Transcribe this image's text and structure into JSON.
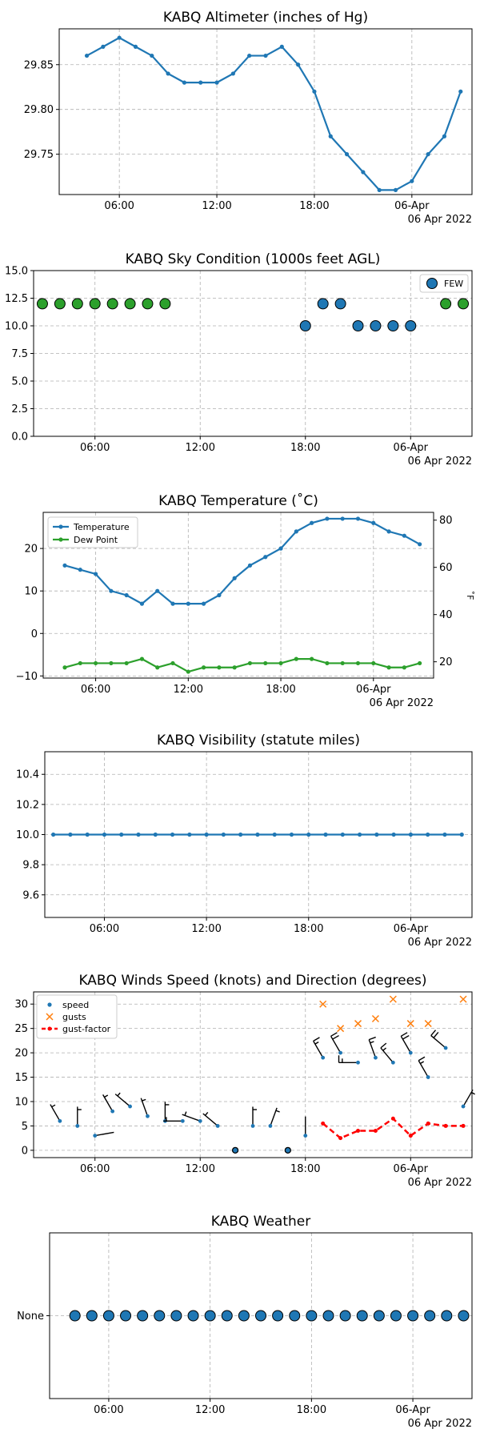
{
  "chart_data": [
    {
      "id": "altimeter",
      "type": "line",
      "title": "KABQ Altimeter (inches of Hg)",
      "xlabel": "",
      "ylabel": "",
      "x_ticks": [
        "06:00",
        "12:00",
        "18:00",
        "06-Apr"
      ],
      "x_sublabel": "06 Apr 2022",
      "x_range": [
        2.5,
        26
      ],
      "ylim": [
        29.705,
        29.89
      ],
      "y_ticks": [
        "29.75",
        "29.80",
        "29.85"
      ],
      "grid": true,
      "series": [
        {
          "color": "#1f77b4",
          "x": [
            4,
            5,
            6,
            7,
            8,
            9,
            10,
            11,
            12,
            13,
            14,
            15,
            16,
            17,
            18,
            19,
            20,
            21,
            22,
            23,
            24,
            25,
            26,
            27
          ],
          "values": [
            29.86,
            29.87,
            29.88,
            29.87,
            29.86,
            29.84,
            29.83,
            29.83,
            29.83,
            29.84,
            29.86,
            29.86,
            29.87,
            29.85,
            29.82,
            29.77,
            29.75,
            29.73,
            29.71,
            29.71,
            29.72,
            29.75,
            29.77,
            29.82
          ]
        }
      ]
    },
    {
      "id": "sky",
      "type": "scatter",
      "title": "KABQ Sky Condition (1000s feet AGL)",
      "xlabel": "",
      "ylabel": "",
      "x_ticks": [
        "06:00",
        "12:00",
        "18:00",
        "06-Apr"
      ],
      "x_sublabel": "06 Apr 2022",
      "ylim": [
        0,
        15
      ],
      "y_ticks": [
        "0.0",
        "2.5",
        "5.0",
        "7.5",
        "10.0",
        "12.5",
        "15.0"
      ],
      "grid": true,
      "legend": [
        "FEW"
      ],
      "legend_position": "top-right",
      "series": [
        {
          "color": "#2ca02c",
          "x": [
            3,
            4,
            5,
            6,
            7,
            8,
            9,
            10,
            26,
            27
          ],
          "values": [
            12,
            12,
            12,
            12,
            12,
            12,
            12,
            12,
            12,
            12
          ]
        },
        {
          "name": "FEW",
          "color": "#1f77b4",
          "x": [
            18,
            19,
            20,
            21,
            22,
            23,
            24
          ],
          "values": [
            10,
            12,
            12,
            10,
            10,
            10,
            10
          ]
        }
      ]
    },
    {
      "id": "temperature",
      "type": "line",
      "title": "KABQ Temperature (˚C)",
      "xlabel": "",
      "ylabel": "",
      "y2label": "˚F",
      "x_ticks": [
        "06:00",
        "12:00",
        "18:00",
        "06-Apr"
      ],
      "x_sublabel": "06 Apr 2022",
      "ylim": [
        -10.5,
        28.5
      ],
      "y_ticks": [
        "−10",
        "0",
        "10",
        "20"
      ],
      "y2_ticks": [
        "20",
        "40",
        "60",
        "80"
      ],
      "grid": true,
      "legend": [
        "Temperature",
        "Dew Point"
      ],
      "legend_position": "top-left",
      "series": [
        {
          "name": "Temperature",
          "color": "#1f77b4",
          "x": [
            4,
            5,
            6,
            7,
            8,
            9,
            10,
            11,
            12,
            13,
            14,
            15,
            16,
            17,
            18,
            19,
            20,
            21,
            22,
            23,
            24,
            25,
            26,
            27
          ],
          "values": [
            16,
            15,
            14,
            10,
            9,
            7,
            10,
            7,
            7,
            7,
            9,
            13,
            16,
            18,
            20,
            24,
            26,
            27,
            27,
            27,
            26,
            24,
            23,
            21
          ]
        },
        {
          "name": "Dew Point",
          "color": "#2ca02c",
          "x": [
            4,
            5,
            6,
            7,
            8,
            9,
            10,
            11,
            12,
            13,
            14,
            15,
            16,
            17,
            18,
            19,
            20,
            21,
            22,
            23,
            24,
            25,
            26,
            27
          ],
          "values": [
            -8,
            -7,
            -7,
            -7,
            -7,
            -6,
            -8,
            -7,
            -9,
            -8,
            -8,
            -8,
            -7,
            -7,
            -7,
            -6,
            -6,
            -7,
            -7,
            -7,
            -7,
            -8,
            -8,
            -7
          ]
        }
      ]
    },
    {
      "id": "visibility",
      "type": "line",
      "title": "KABQ Visibility (statute miles)",
      "xlabel": "",
      "ylabel": "",
      "x_ticks": [
        "06:00",
        "12:00",
        "18:00",
        "06-Apr"
      ],
      "x_sublabel": "06 Apr 2022",
      "ylim": [
        9.45,
        10.55
      ],
      "y_ticks": [
        "9.6",
        "9.8",
        "10.0",
        "10.2",
        "10.4"
      ],
      "grid": true,
      "series": [
        {
          "color": "#1f77b4",
          "x": [
            3,
            4,
            5,
            6,
            7,
            8,
            9,
            10,
            11,
            12,
            13,
            14,
            15,
            16,
            17,
            18,
            19,
            20,
            21,
            22,
            23,
            24,
            25,
            26,
            27
          ],
          "values": [
            10,
            10,
            10,
            10,
            10,
            10,
            10,
            10,
            10,
            10,
            10,
            10,
            10,
            10,
            10,
            10,
            10,
            10,
            10,
            10,
            10,
            10,
            10,
            10,
            10
          ]
        }
      ]
    },
    {
      "id": "winds",
      "type": "scatter",
      "title": "KABQ Winds Speed (knots) and Direction (degrees)",
      "xlabel": "",
      "ylabel": "",
      "x_ticks": [
        "06:00",
        "12:00",
        "18:00",
        "06-Apr"
      ],
      "x_sublabel": "06 Apr 2022",
      "ylim": [
        -1.5,
        32.5
      ],
      "y_ticks": [
        "0",
        "5",
        "10",
        "15",
        "20",
        "25",
        "30"
      ],
      "grid": true,
      "legend": [
        "speed",
        "gusts",
        "gust-factor"
      ],
      "legend_position": "top-left",
      "series": [
        {
          "name": "speed",
          "color": "#1f77b4",
          "x": [
            4,
            5,
            6,
            7,
            8,
            9,
            10,
            11,
            12,
            13,
            14,
            15,
            16,
            17,
            18,
            19,
            20,
            21,
            22,
            23,
            24,
            25,
            26,
            27
          ],
          "values": [
            6,
            5,
            3,
            8,
            9,
            7,
            6,
            6,
            6,
            5,
            0,
            5,
            5,
            0,
            3,
            19,
            20,
            18,
            19,
            18,
            20,
            15,
            21,
            9
          ],
          "direction_deg": [
            330,
            0,
            80,
            330,
            310,
            340,
            0,
            270,
            290,
            310,
            0,
            0,
            20,
            0,
            0,
            330,
            330,
            270,
            340,
            320,
            330,
            330,
            310,
            30
          ]
        },
        {
          "name": "gusts",
          "color": "#ff7f0e",
          "x": [
            19,
            20,
            21,
            22,
            23,
            24,
            25,
            27
          ],
          "values": [
            30,
            25,
            26,
            27,
            31,
            26,
            26,
            31
          ]
        },
        {
          "name": "gust-factor",
          "color": "#ff0000",
          "x": [
            19,
            20,
            21,
            22,
            23,
            24,
            25,
            26,
            27
          ],
          "values": [
            5.5,
            2.5,
            4,
            4,
            6.5,
            3,
            5.5,
            5,
            5
          ]
        }
      ]
    },
    {
      "id": "weather",
      "type": "scatter",
      "title": "KABQ Weather",
      "xlabel": "",
      "ylabel": "",
      "x_ticks": [
        "06:00",
        "12:00",
        "18:00",
        "06-Apr"
      ],
      "x_sublabel": "06 Apr 2022",
      "y_categories": [
        "None"
      ],
      "grid": true,
      "series": [
        {
          "color": "#1f77b4",
          "x": [
            4,
            5,
            6,
            7,
            8,
            9,
            10,
            11,
            12,
            13,
            14,
            15,
            16,
            17,
            18,
            19,
            20,
            21,
            22,
            23,
            24,
            25,
            26,
            27
          ],
          "values": [
            "None",
            "None",
            "None",
            "None",
            "None",
            "None",
            "None",
            "None",
            "None",
            "None",
            "None",
            "None",
            "None",
            "None",
            "None",
            "None",
            "None",
            "None",
            "None",
            "None",
            "None",
            "None",
            "None",
            "None"
          ]
        }
      ]
    }
  ]
}
